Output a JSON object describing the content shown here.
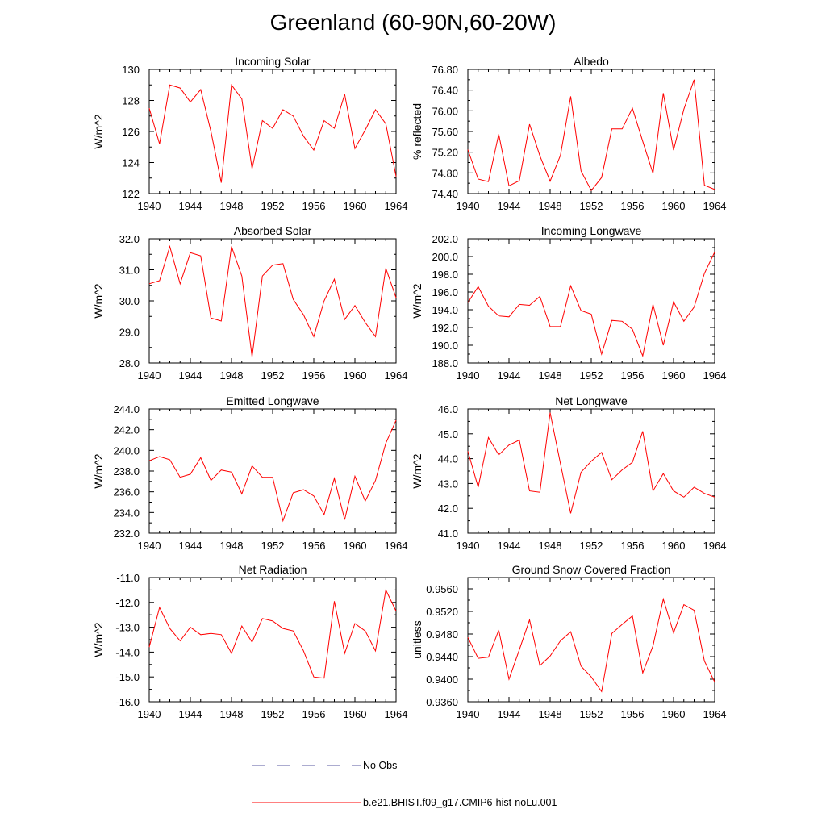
{
  "title": "Greenland (60-90N,60-20W)",
  "colors": {
    "model": "#ff0000",
    "obs": "#5a5aa0",
    "axis": "#000000"
  },
  "legend": {
    "obs_label": "No Obs",
    "model_label": "b.e21.BHIST.f09_g17.CMIP6-hist-noLu.001"
  },
  "chart_data": [
    {
      "type": "line",
      "title": "Incoming Solar",
      "ylabel": "W/m^2",
      "xlim": [
        1940,
        1964
      ],
      "ylim": [
        122,
        130
      ],
      "xticks": [
        1940,
        1944,
        1948,
        1952,
        1956,
        1960,
        1964
      ],
      "xtick_labels": [
        "1940",
        "1944",
        "1948",
        "1952",
        "1956",
        "1960",
        "1964"
      ],
      "yticks": [
        122,
        124,
        126,
        128,
        130
      ],
      "ytick_labels": [
        "122",
        "124",
        "126",
        "128",
        "130"
      ],
      "x": [
        1940,
        1941,
        1942,
        1943,
        1944,
        1945,
        1946,
        1947,
        1948,
        1949,
        1950,
        1951,
        1952,
        1953,
        1954,
        1955,
        1956,
        1957,
        1958,
        1959,
        1960,
        1961,
        1962,
        1963,
        1964
      ],
      "values": [
        127.5,
        125.2,
        129.0,
        128.8,
        127.9,
        128.7,
        126.0,
        122.7,
        129.0,
        128.1,
        123.6,
        126.7,
        126.2,
        127.4,
        127.0,
        125.7,
        124.8,
        126.7,
        126.2,
        128.4,
        124.9,
        126.1,
        127.4,
        126.5,
        123.1
      ]
    },
    {
      "type": "line",
      "title": "Albedo",
      "ylabel": "% reflected",
      "xlim": [
        1940,
        1964
      ],
      "ylim": [
        74.4,
        76.8
      ],
      "xticks": [
        1940,
        1944,
        1948,
        1952,
        1956,
        1960,
        1964
      ],
      "xtick_labels": [
        "1940",
        "1944",
        "1948",
        "1952",
        "1956",
        "1960",
        "1964"
      ],
      "yticks": [
        74.4,
        74.8,
        75.2,
        75.6,
        76.0,
        76.4,
        76.8
      ],
      "ytick_labels": [
        "74.40",
        "74.80",
        "75.20",
        "75.60",
        "76.00",
        "76.40",
        "76.80"
      ],
      "x": [
        1940,
        1941,
        1942,
        1943,
        1944,
        1945,
        1946,
        1947,
        1948,
        1949,
        1950,
        1951,
        1952,
        1953,
        1954,
        1955,
        1956,
        1957,
        1958,
        1959,
        1960,
        1961,
        1962,
        1963,
        1964
      ],
      "values": [
        75.25,
        74.68,
        74.63,
        75.55,
        74.55,
        74.65,
        75.74,
        75.13,
        74.64,
        75.14,
        76.28,
        74.84,
        74.46,
        74.71,
        75.65,
        75.65,
        76.05,
        75.41,
        74.79,
        76.34,
        75.24,
        76.03,
        76.6,
        74.56,
        74.48
      ]
    },
    {
      "type": "line",
      "title": "Absorbed Solar",
      "ylabel": "W/m^2",
      "xlim": [
        1940,
        1964
      ],
      "ylim": [
        28,
        32
      ],
      "xticks": [
        1940,
        1944,
        1948,
        1952,
        1956,
        1960,
        1964
      ],
      "xtick_labels": [
        "1940",
        "1944",
        "1948",
        "1952",
        "1956",
        "1960",
        "1964"
      ],
      "yticks": [
        28,
        29,
        30,
        31,
        32
      ],
      "ytick_labels": [
        "28.0",
        "29.0",
        "30.0",
        "31.0",
        "32.0"
      ],
      "x": [
        1940,
        1941,
        1942,
        1943,
        1944,
        1945,
        1946,
        1947,
        1948,
        1949,
        1950,
        1951,
        1952,
        1953,
        1954,
        1955,
        1956,
        1957,
        1958,
        1959,
        1960,
        1961,
        1962,
        1963,
        1964
      ],
      "values": [
        30.55,
        30.65,
        31.75,
        30.55,
        31.55,
        31.45,
        29.45,
        29.35,
        31.75,
        30.8,
        28.2,
        30.8,
        31.15,
        31.2,
        30.05,
        29.55,
        28.85,
        30.0,
        30.7,
        29.4,
        29.85,
        29.3,
        28.85,
        31.05,
        30.1
      ]
    },
    {
      "type": "line",
      "title": "Incoming Longwave",
      "ylabel": "W/m^2",
      "xlim": [
        1940,
        1964
      ],
      "ylim": [
        188,
        202
      ],
      "xticks": [
        1940,
        1944,
        1948,
        1952,
        1956,
        1960,
        1964
      ],
      "xtick_labels": [
        "1940",
        "1944",
        "1948",
        "1952",
        "1956",
        "1960",
        "1964"
      ],
      "yticks": [
        188,
        190,
        192,
        194,
        196,
        198,
        200,
        202
      ],
      "ytick_labels": [
        "188.0",
        "190.0",
        "192.0",
        "194.0",
        "196.0",
        "198.0",
        "200.0",
        "202.0"
      ],
      "x": [
        1940,
        1941,
        1942,
        1943,
        1944,
        1945,
        1946,
        1947,
        1948,
        1949,
        1950,
        1951,
        1952,
        1953,
        1954,
        1955,
        1956,
        1957,
        1958,
        1959,
        1960,
        1961,
        1962,
        1963,
        1964
      ],
      "values": [
        194.8,
        196.6,
        194.4,
        193.3,
        193.2,
        194.6,
        194.5,
        195.5,
        192.1,
        192.1,
        196.7,
        193.9,
        193.5,
        189.0,
        192.8,
        192.7,
        191.8,
        188.8,
        194.6,
        190.0,
        194.9,
        192.7,
        194.3,
        198.1,
        200.5
      ]
    },
    {
      "type": "line",
      "title": "Emitted Longwave",
      "ylabel": "W/m^2",
      "xlim": [
        1940,
        1964
      ],
      "ylim": [
        232,
        244
      ],
      "xticks": [
        1940,
        1944,
        1948,
        1952,
        1956,
        1960,
        1964
      ],
      "xtick_labels": [
        "1940",
        "1944",
        "1948",
        "1952",
        "1956",
        "1960",
        "1964"
      ],
      "yticks": [
        232,
        234,
        236,
        238,
        240,
        242,
        244
      ],
      "ytick_labels": [
        "232.0",
        "234.0",
        "236.0",
        "238.0",
        "240.0",
        "242.0",
        "244.0"
      ],
      "x": [
        1940,
        1941,
        1942,
        1943,
        1944,
        1945,
        1946,
        1947,
        1948,
        1949,
        1950,
        1951,
        1952,
        1953,
        1954,
        1955,
        1956,
        1957,
        1958,
        1959,
        1960,
        1961,
        1962,
        1963,
        1964
      ],
      "values": [
        239.0,
        239.4,
        239.1,
        237.4,
        237.7,
        239.3,
        237.1,
        238.1,
        237.9,
        235.8,
        238.5,
        237.4,
        237.4,
        233.2,
        235.9,
        236.2,
        235.6,
        233.8,
        237.3,
        233.3,
        237.5,
        235.1,
        237.1,
        240.7,
        242.9
      ]
    },
    {
      "type": "line",
      "title": "Net Longwave",
      "ylabel": "W/m^2",
      "xlim": [
        1940,
        1964
      ],
      "ylim": [
        41,
        46
      ],
      "xticks": [
        1940,
        1944,
        1948,
        1952,
        1956,
        1960,
        1964
      ],
      "xtick_labels": [
        "1940",
        "1944",
        "1948",
        "1952",
        "1956",
        "1960",
        "1964"
      ],
      "yticks": [
        41,
        42,
        43,
        44,
        45,
        46
      ],
      "ytick_labels": [
        "41.0",
        "42.0",
        "43.0",
        "44.0",
        "45.0",
        "46.0"
      ],
      "x": [
        1940,
        1941,
        1942,
        1943,
        1944,
        1945,
        1946,
        1947,
        1948,
        1949,
        1950,
        1951,
        1952,
        1953,
        1954,
        1955,
        1956,
        1957,
        1958,
        1959,
        1960,
        1961,
        1962,
        1963,
        1964
      ],
      "values": [
        44.3,
        42.85,
        44.85,
        44.15,
        44.55,
        44.75,
        42.7,
        42.65,
        45.85,
        43.8,
        41.8,
        43.45,
        43.9,
        44.25,
        43.15,
        43.55,
        43.85,
        45.1,
        42.7,
        43.4,
        42.7,
        42.45,
        42.85,
        42.6,
        42.45
      ]
    },
    {
      "type": "line",
      "title": "Net Radiation",
      "ylabel": "W/m^2",
      "xlim": [
        1940,
        1964
      ],
      "ylim": [
        -16,
        -11
      ],
      "xticks": [
        1940,
        1944,
        1948,
        1952,
        1956,
        1960,
        1964
      ],
      "xtick_labels": [
        "1940",
        "1944",
        "1948",
        "1952",
        "1956",
        "1960",
        "1964"
      ],
      "yticks": [
        -16,
        -15,
        -14,
        -13,
        -12,
        -11
      ],
      "ytick_labels": [
        "-16.0",
        "-15.0",
        "-14.0",
        "-13.0",
        "-12.0",
        "-11.0"
      ],
      "x": [
        1940,
        1941,
        1942,
        1943,
        1944,
        1945,
        1946,
        1947,
        1948,
        1949,
        1950,
        1951,
        1952,
        1953,
        1954,
        1955,
        1956,
        1957,
        1958,
        1959,
        1960,
        1961,
        1962,
        1963,
        1964
      ],
      "values": [
        -13.8,
        -12.2,
        -13.05,
        -13.55,
        -13.0,
        -13.3,
        -13.25,
        -13.3,
        -14.05,
        -12.95,
        -13.6,
        -12.65,
        -12.75,
        -13.05,
        -13.15,
        -13.95,
        -15.0,
        -15.05,
        -11.95,
        -14.05,
        -12.85,
        -13.15,
        -13.95,
        -11.5,
        -12.35
      ]
    },
    {
      "type": "line",
      "title": "Ground Snow Covered Fraction",
      "ylabel": "unitless",
      "xlim": [
        1940,
        1964
      ],
      "ylim": [
        0.936,
        0.958
      ],
      "xticks": [
        1940,
        1944,
        1948,
        1952,
        1956,
        1960,
        1964
      ],
      "xtick_labels": [
        "1940",
        "1944",
        "1948",
        "1952",
        "1956",
        "1960",
        "1964"
      ],
      "yticks": [
        0.936,
        0.94,
        0.944,
        0.948,
        0.952,
        0.956
      ],
      "ytick_labels": [
        "0.9360",
        "0.9400",
        "0.9440",
        "0.9480",
        "0.9520",
        "0.9560"
      ],
      "x": [
        1940,
        1941,
        1942,
        1943,
        1944,
        1945,
        1946,
        1947,
        1948,
        1949,
        1950,
        1951,
        1952,
        1953,
        1954,
        1955,
        1956,
        1957,
        1958,
        1959,
        1960,
        1961,
        1962,
        1963,
        1964
      ],
      "values": [
        0.9474,
        0.9437,
        0.9439,
        0.9487,
        0.94,
        0.9452,
        0.9505,
        0.9424,
        0.9441,
        0.9468,
        0.9484,
        0.9423,
        0.9404,
        0.9378,
        0.9481,
        0.9497,
        0.9512,
        0.9411,
        0.9459,
        0.9542,
        0.9482,
        0.9532,
        0.9522,
        0.9432,
        0.9395
      ]
    }
  ]
}
